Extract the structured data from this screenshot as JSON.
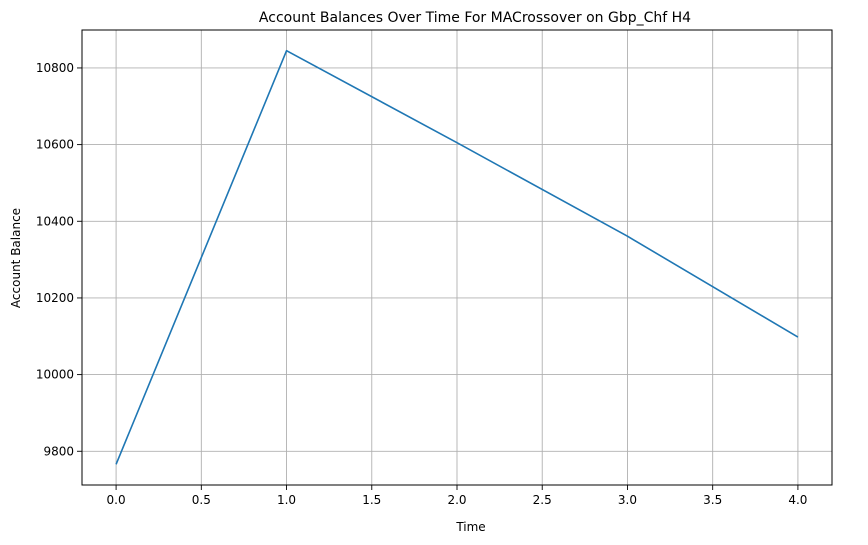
{
  "chart_data": {
    "type": "line",
    "title": "Account Balances Over Time For MACrossover on Gbp_Chf H4",
    "xlabel": "Time",
    "ylabel": "Account Balance",
    "x": [
      0,
      1,
      2,
      3,
      4
    ],
    "series": [
      {
        "values": [
          9766,
          10845,
          10605,
          10361,
          10098
        ],
        "color": "#1f77b4"
      }
    ],
    "xlim": [
      -0.2,
      4.2
    ],
    "ylim": [
      9712,
      10899
    ],
    "xticks": [
      0.0,
      0.5,
      1.0,
      1.5,
      2.0,
      2.5,
      3.0,
      3.5,
      4.0
    ],
    "xtick_labels": [
      "0.0",
      "0.5",
      "1.0",
      "1.5",
      "2.0",
      "2.5",
      "3.0",
      "3.5",
      "4.0"
    ],
    "yticks": [
      9800,
      10000,
      10200,
      10400,
      10600,
      10800
    ],
    "ytick_labels": [
      "9800",
      "10000",
      "10200",
      "10400",
      "10600",
      "10800"
    ],
    "grid": true,
    "legend": false
  }
}
